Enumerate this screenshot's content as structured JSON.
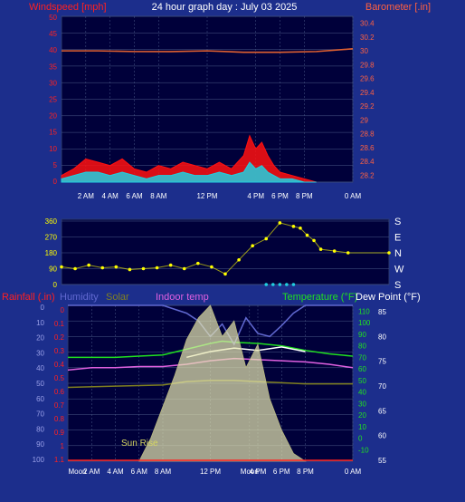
{
  "title": "24 hour graph day : July 03 2025",
  "colors": {
    "background": "#1c2e8c",
    "plot": "#00003a",
    "grid": "#4a5a88"
  },
  "chart_data": [
    {
      "id": "wind_baro",
      "type": "line",
      "left_label": "Windspeed [mph]",
      "right_label": "Barometer [.in]",
      "x_ticks": [
        "2 AM",
        "4 AM",
        "6 AM",
        "8 AM",
        "12 PM",
        "4 PM",
        "6 PM",
        "8 PM",
        "0 AM"
      ],
      "x_tick_hours": [
        2,
        4,
        6,
        8,
        12,
        16,
        18,
        20,
        24
      ],
      "y_left": {
        "min": 0,
        "max": 50,
        "ticks": [
          "0",
          "5",
          "10",
          "15",
          "20",
          "25",
          "30",
          "35",
          "40",
          "45",
          "50"
        ]
      },
      "y_right": {
        "min": 28.1,
        "max": 30.5,
        "ticks": [
          "28.2",
          "28.4",
          "28.6",
          "28.8",
          "29",
          "29.2",
          "29.4",
          "29.6",
          "29.8",
          "30",
          "30.2",
          "30.4"
        ]
      },
      "series": [
        {
          "color": "#e06030",
          "axis": "right",
          "x": [
            0,
            3,
            6,
            9,
            12,
            15,
            18,
            21,
            24
          ],
          "values": [
            30.0,
            30.0,
            29.99,
            29.99,
            30.0,
            29.98,
            29.98,
            29.99,
            30.03
          ]
        },
        {
          "color": "#ff1010",
          "axis": "left",
          "x": [
            0,
            1,
            2,
            3,
            4,
            5,
            6,
            7,
            8,
            9,
            10,
            11,
            12,
            13,
            14,
            15,
            15.5,
            16,
            16.5,
            17,
            17.5,
            18,
            19,
            20,
            21
          ],
          "values": [
            2,
            4,
            7,
            6,
            5,
            7,
            4,
            3,
            5,
            4,
            6,
            5,
            4,
            6,
            4,
            8,
            14,
            10,
            12,
            8,
            5,
            3,
            2,
            1,
            0
          ]
        },
        {
          "color": "#20d0e0",
          "axis": "left",
          "x": [
            0,
            1,
            2,
            3,
            4,
            5,
            6,
            7,
            8,
            9,
            10,
            11,
            12,
            13,
            14,
            15,
            15.5,
            16,
            16.5,
            17,
            17.5,
            18,
            19,
            20,
            21
          ],
          "values": [
            1,
            2,
            3,
            3,
            2,
            3,
            2,
            1,
            2,
            2,
            3,
            2,
            2,
            3,
            2,
            3,
            6,
            4,
            5,
            3,
            2,
            1,
            1,
            0,
            0
          ]
        }
      ]
    },
    {
      "id": "wind_direction",
      "type": "scatter",
      "y_left": {
        "min": 0,
        "max": 360,
        "ticks": [
          "0",
          "90",
          "180",
          "270",
          "360"
        ]
      },
      "compass": [
        "S",
        "E",
        "N",
        "W",
        "S"
      ],
      "series": [
        {
          "color": "#ffff00",
          "x": [
            0,
            1,
            2,
            3,
            4,
            5,
            6,
            7,
            8,
            9,
            10,
            11,
            12,
            13,
            14,
            15,
            16,
            17,
            17.5,
            18,
            18.5,
            19,
            20,
            21,
            24
          ],
          "values": [
            100,
            90,
            110,
            95,
            100,
            85,
            90,
            95,
            110,
            90,
            120,
            100,
            60,
            140,
            220,
            260,
            350,
            330,
            320,
            280,
            250,
            200,
            190,
            180,
            180
          ]
        },
        {
          "color": "#20d0e0",
          "x": [
            15,
            15.5,
            16,
            16.5,
            17
          ],
          "values": [
            0,
            0,
            0,
            0,
            0
          ]
        }
      ]
    },
    {
      "id": "temp_solar",
      "type": "area",
      "header": [
        "Rainfall (.in)",
        "Humidity",
        "Solar",
        "Indoor temp",
        "Temperature (°F)",
        "Dew Point (°F)"
      ],
      "x_ticks": [
        "Moon",
        "2 AM",
        "4 AM",
        "6 AM",
        "8 AM",
        "12 PM",
        "Moon",
        "4 PM",
        "6 PM",
        "8 PM",
        "0 AM"
      ],
      "x_tick_hours": [
        0.8,
        2,
        4,
        6,
        8,
        12,
        15.3,
        16,
        18,
        20,
        24
      ],
      "event_labels": [
        "Sun Rise"
      ],
      "rain_axis": {
        "ticks": [
          "0",
          "0.1",
          "0.2",
          "0.3",
          "0.4",
          "0.5",
          "0.6",
          "0.7",
          "0.8",
          "0.9",
          "1",
          "1.1"
        ]
      },
      "hum_axis": {
        "ticks": [
          "0",
          "10",
          "20",
          "30",
          "40",
          "50",
          "60",
          "70",
          "80",
          "90",
          "100"
        ]
      },
      "temp_axis": {
        "min": -20,
        "max": 115,
        "ticks": [
          "-10",
          "0",
          "10",
          "20",
          "30",
          "40",
          "50",
          "60",
          "70",
          "80",
          "90",
          "100",
          "110"
        ]
      },
      "dew_axis": {
        "ticks": [
          "55",
          "60",
          "65",
          "70",
          "75",
          "80",
          "85"
        ]
      },
      "series": [
        {
          "name": "Temperature (°F)",
          "color": "#20e020",
          "x": [
            0,
            2,
            4,
            6,
            8,
            10,
            12,
            13,
            14,
            16,
            18,
            20,
            22,
            24
          ],
          "values": [
            70,
            70,
            70,
            71,
            72,
            77,
            82,
            84,
            83,
            82,
            80,
            76,
            73,
            71
          ]
        },
        {
          "name": "Dew Point (°F)",
          "color": "#ffffff",
          "x": [
            0,
            8,
            10,
            12,
            14,
            16,
            18,
            20
          ],
          "values": [
            null,
            null,
            70,
            75,
            78,
            76,
            79,
            75
          ]
        },
        {
          "name": "Humidity",
          "color": "#6068d0",
          "x": [
            0,
            2,
            4,
            6,
            8,
            10,
            11,
            12,
            13,
            14,
            15,
            16,
            17,
            18,
            19,
            20,
            24
          ],
          "values": [
            100,
            100,
            100,
            100,
            100,
            95,
            90,
            80,
            88,
            75,
            92,
            82,
            80,
            87,
            95,
            100,
            100
          ]
        },
        {
          "name": "Indoor temp",
          "color": "#e060e0",
          "x": [
            0,
            2,
            4,
            6,
            8,
            10,
            12,
            14,
            16,
            18,
            20,
            22,
            24
          ],
          "values": [
            59,
            61,
            61,
            62,
            62,
            64,
            67,
            69,
            68,
            67,
            66,
            64,
            61
          ]
        },
        {
          "name": "Solar",
          "color": "#808020",
          "x": [
            0,
            4,
            8,
            10,
            12,
            14,
            16,
            18,
            20,
            24
          ],
          "values": [
            44,
            45,
            46,
            49,
            50,
            50,
            49,
            48,
            47,
            47
          ]
        },
        {
          "name": "Solar radiation",
          "color": "#e8e8b0",
          "x": [
            6,
            7,
            8,
            9,
            10,
            11,
            12,
            13,
            14,
            15,
            16,
            17,
            18,
            19,
            20
          ],
          "values": [
            0,
            15,
            35,
            55,
            78,
            92,
            100,
            80,
            90,
            60,
            75,
            40,
            20,
            5,
            0
          ]
        },
        {
          "name": "Rainfall (.in)",
          "color": "#ff2020",
          "x": [
            0,
            24
          ],
          "values": [
            0,
            0
          ]
        }
      ]
    }
  ]
}
